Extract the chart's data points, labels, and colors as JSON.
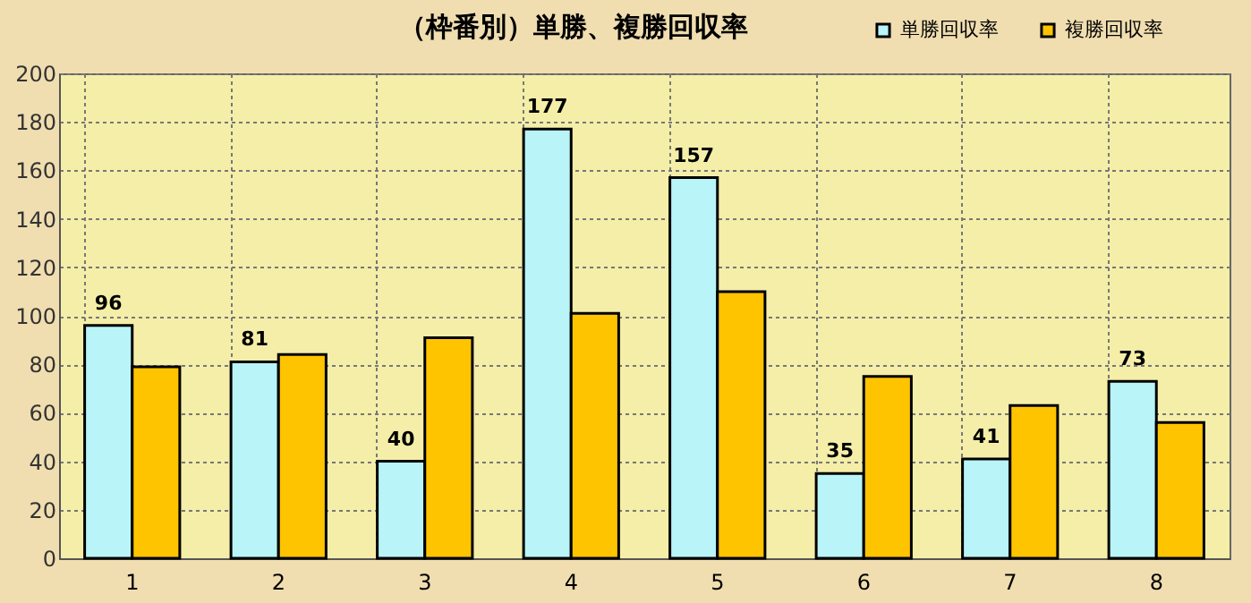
{
  "chart_data": {
    "type": "bar",
    "title": "（枠番別）単勝、複勝回収率",
    "categories": [
      "1",
      "2",
      "3",
      "4",
      "5",
      "6",
      "7",
      "8"
    ],
    "series": [
      {
        "name": "単勝回収率",
        "color": "#b8f4f8",
        "values": [
          96,
          81,
          40,
          177,
          157,
          35,
          41,
          73
        ],
        "value_labels": [
          "96",
          "81",
          "40",
          "177",
          "157",
          "35",
          "41",
          "73"
        ]
      },
      {
        "name": "複勝回収率",
        "color": "#ffc400",
        "values": [
          79,
          84,
          91,
          101,
          110,
          75,
          63,
          56
        ]
      }
    ],
    "ylim": [
      0,
      200
    ],
    "yticks": [
      0,
      20,
      40,
      60,
      80,
      100,
      120,
      140,
      160,
      180,
      200
    ],
    "grid": true,
    "legend": "top right"
  }
}
